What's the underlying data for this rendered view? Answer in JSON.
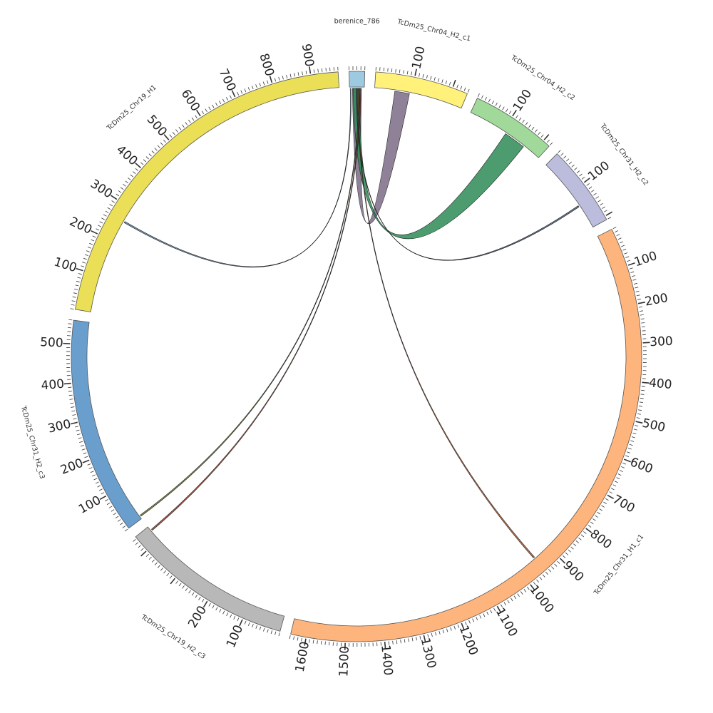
{
  "diagram": {
    "segments": [
      {
        "id": "berenice",
        "name": "berenice_786",
        "length": 40,
        "color": "#9ecae1",
        "ticks": []
      },
      {
        "id": "chr04c1",
        "name": "TcDm25_Chr04_H2_c1",
        "length": 240,
        "color": "#fff17a",
        "ticks": [
          "100"
        ]
      },
      {
        "id": "chr04c2",
        "name": "TcDm25_Chr04_H2_c2",
        "length": 220,
        "color": "#a1d99b",
        "ticks": [
          "100"
        ]
      },
      {
        "id": "chr31c2",
        "name": "TcDm25_Chr31_H2_c2",
        "length": 210,
        "color": "#bcbddc",
        "ticks": [
          "100"
        ]
      },
      {
        "id": "chr31h1c1",
        "name": "TcDm25_Chr31_H1_c1",
        "length": 1640,
        "color": "#fdb57d",
        "ticks": [
          "100",
          "200",
          "300",
          "400",
          "500",
          "600",
          "700",
          "800",
          "900",
          "1000",
          "1100",
          "1200",
          "1300",
          "1400",
          "1500",
          "1600"
        ]
      },
      {
        "id": "chr19h2c3",
        "name": "TcDm25_Chr19_H2_c3",
        "length": 445,
        "color": "#b8b8b8",
        "ticks": [
          "100",
          "200"
        ]
      },
      {
        "id": "chr31h2c3",
        "name": "TcDm25_Chr31_H2_c3",
        "length": 560,
        "color": "#6a9fcd",
        "ticks": [
          "100",
          "200",
          "300",
          "400",
          "500"
        ]
      },
      {
        "id": "chr19h1",
        "name": "TcDm25_Chr19_H1",
        "length": 970,
        "color": "#eadf57",
        "ticks": [
          "100",
          "200",
          "300",
          "400",
          "500",
          "600",
          "700",
          "800",
          "900"
        ]
      }
    ],
    "links": [
      {
        "from": "berenice",
        "from_pos": [
          8,
          32
        ],
        "to": "chr04c1",
        "to_pos": [
          55,
          95
        ],
        "color": "#7a6b86"
      },
      {
        "from": "berenice",
        "from_pos": [
          10,
          28
        ],
        "to": "chr04c2",
        "to_pos": [
          110,
          170
        ],
        "color": "#2e8b57"
      },
      {
        "from": "berenice",
        "from_pos": [
          18,
          20
        ],
        "to": "chr31c2",
        "to_pos": [
          140,
          144
        ],
        "color": "#4a5a7a"
      },
      {
        "from": "berenice",
        "from_pos": [
          2,
          4
        ],
        "to": "chr19h1",
        "to_pos": [
          258,
          262
        ],
        "color": "#5b7b9a"
      },
      {
        "from": "berenice",
        "from_pos": [
          22,
          24
        ],
        "to": "chr31h1c1",
        "to_pos": [
          946,
          950
        ],
        "color": "#b05a2a"
      },
      {
        "from": "berenice",
        "from_pos": [
          26,
          28
        ],
        "to": "chr31h2c3",
        "to_pos": [
          6,
          10
        ],
        "color": "#6b7a2a"
      },
      {
        "from": "berenice",
        "from_pos": [
          30,
          32
        ],
        "to": "chr19h2c3",
        "to_pos": [
          430,
          434
        ],
        "color": "#a0402a"
      }
    ]
  }
}
